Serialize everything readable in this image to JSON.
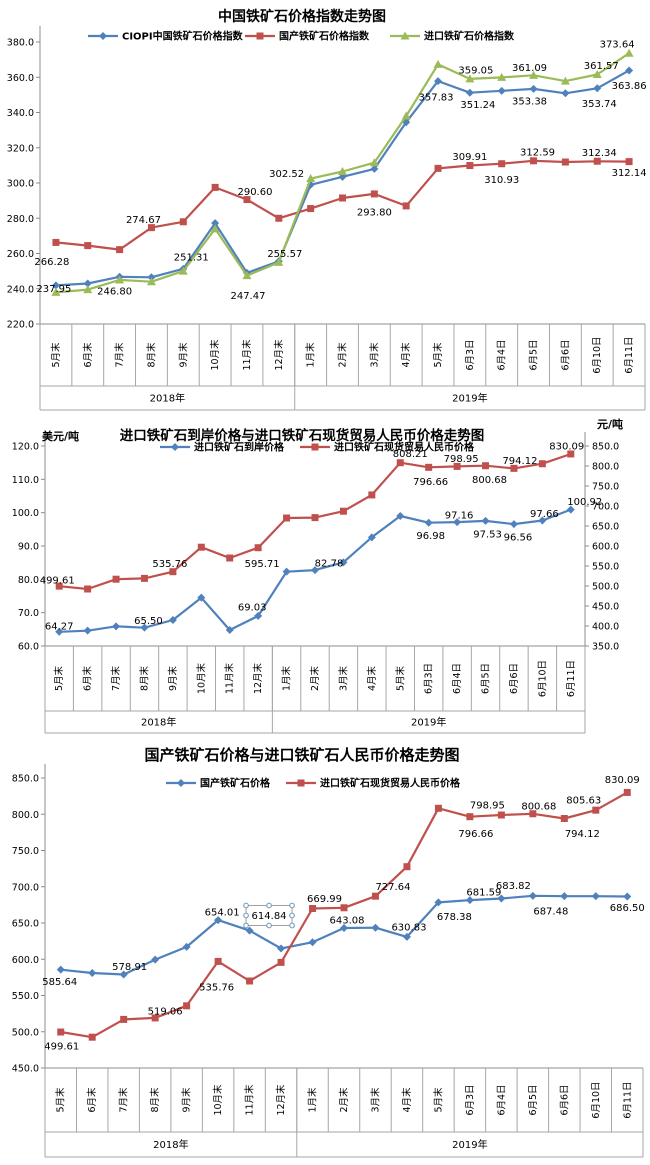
{
  "page": {
    "background": "#ffffff"
  },
  "chart_data": [
    {
      "type": "line",
      "title": "中国铁矿石价格指数走势图",
      "legend_position": "top",
      "grid": false,
      "categories": [
        "5月末",
        "6月末",
        "7月末",
        "8月末",
        "9月末",
        "10月末",
        "11月末",
        "12月末",
        "1月末",
        "2月末",
        "3月末",
        "4月末",
        "5月末",
        "6月3日",
        "6月4日",
        "6月5日",
        "6月6日",
        "6月10日",
        "6月11日"
      ],
      "category_groups": [
        {
          "label": "2018年",
          "span": 8
        },
        {
          "label": "2019年",
          "span": 11
        }
      ],
      "axes": {
        "left": {
          "min": 220,
          "max": 380,
          "step": 20,
          "decimals": 1
        }
      },
      "series": [
        {
          "name": "CIOPI中国铁矿石价格指数",
          "color": "#4f81bd",
          "marker": "diamond",
          "axis": "left",
          "values": [
            241.95,
            243.0,
            246.8,
            246.5,
            251.31,
            277.2,
            249.0,
            255.57,
            299.0,
            303.5,
            308.0,
            334.5,
            357.83,
            351.24,
            352.3,
            353.38,
            350.9,
            353.74,
            363.86
          ],
          "point_labels": [
            {
              "i": 2,
              "t": "246.80",
              "dx": -5,
              "dy": 14
            },
            {
              "i": 4,
              "t": "251.31",
              "dx": 8,
              "dy": -12
            },
            {
              "i": 7,
              "t": "255.57",
              "dx": 6,
              "dy": -8
            },
            {
              "i": 12,
              "t": "357.83",
              "dx": -2,
              "dy": 16
            },
            {
              "i": 13,
              "t": "351.24",
              "dx": 8,
              "dy": 12
            },
            {
              "i": 15,
              "t": "353.38",
              "dx": -4,
              "dy": 12
            },
            {
              "i": 17,
              "t": "353.74",
              "dx": 2,
              "dy": 15
            },
            {
              "i": 18,
              "t": "363.86",
              "dx": 0,
              "dy": 15
            }
          ]
        },
        {
          "name": "国产铁矿石价格指数",
          "color": "#c0504d",
          "marker": "square",
          "axis": "left",
          "values": [
            266.28,
            264.5,
            262.2,
            274.67,
            278.0,
            297.5,
            290.6,
            280.0,
            285.5,
            291.5,
            293.8,
            287.0,
            308.3,
            309.91,
            310.93,
            312.59,
            311.9,
            312.34,
            312.14
          ],
          "point_labels": [
            {
              "i": 0,
              "t": "266.28",
              "dx": -4,
              "dy": 19
            },
            {
              "i": 3,
              "t": "274.67",
              "dx": -8,
              "dy": -8
            },
            {
              "i": 6,
              "t": "290.60",
              "dx": 8,
              "dy": -8
            },
            {
              "i": 10,
              "t": "293.80",
              "dx": 0,
              "dy": 18
            },
            {
              "i": 13,
              "t": "309.91",
              "dx": 0,
              "dy": -9
            },
            {
              "i": 14,
              "t": "310.93",
              "dx": 0,
              "dy": 16
            },
            {
              "i": 15,
              "t": "312.59",
              "dx": 4,
              "dy": -9
            },
            {
              "i": 17,
              "t": "312.34",
              "dx": 2,
              "dy": -9
            },
            {
              "i": 18,
              "t": "312.14",
              "dx": 0,
              "dy": 11
            }
          ]
        },
        {
          "name": "进口铁矿石价格指数",
          "color": "#9bbb59",
          "marker": "triangle",
          "axis": "left",
          "values": [
            237.95,
            239.5,
            245.0,
            244.0,
            250.0,
            274.0,
            247.47,
            255.0,
            302.52,
            306.5,
            311.5,
            338.0,
            367.3,
            359.05,
            359.9,
            361.09,
            357.8,
            361.57,
            373.64
          ],
          "point_labels": [
            {
              "i": 0,
              "t": "237.95",
              "dx": -2,
              "dy": -4
            },
            {
              "i": 6,
              "t": "247.47",
              "dx": 1,
              "dy": 20
            },
            {
              "i": 8,
              "t": "302.52",
              "dx": -24,
              "dy": -5
            },
            {
              "i": 13,
              "t": "359.05",
              "dx": 6,
              "dy": -9
            },
            {
              "i": 15,
              "t": "361.09",
              "dx": -4,
              "dy": -8
            },
            {
              "i": 17,
              "t": "361.57",
              "dx": 4,
              "dy": -9
            },
            {
              "i": 18,
              "t": "373.64",
              "dx": -12,
              "dy": -9
            }
          ]
        }
      ]
    },
    {
      "type": "line",
      "title": "进口铁矿石到岸价格与进口铁矿石现货贸易人民币价格走势图",
      "unit_left": "美元/吨",
      "unit_right": "元/吨",
      "legend_position": "top",
      "grid": false,
      "categories": [
        "5月末",
        "6月末",
        "7月末",
        "8月末",
        "9月末",
        "10月末",
        "11月末",
        "12月末",
        "1月末",
        "2月末",
        "3月末",
        "4月末",
        "5月末",
        "6月3日",
        "6月4日",
        "6月5日",
        "6月6日",
        "6月10日",
        "6月11日"
      ],
      "category_groups": [
        {
          "label": "2018年",
          "span": 8
        },
        {
          "label": "2019年",
          "span": 11
        }
      ],
      "axes": {
        "left": {
          "min": 60,
          "max": 120,
          "step": 10,
          "decimals": 1
        },
        "right": {
          "min": 350,
          "max": 850,
          "step": 50,
          "decimals": 1
        }
      },
      "series": [
        {
          "name": "进口铁矿石到岸价格",
          "color": "#4f81bd",
          "marker": "diamond",
          "axis": "left",
          "values": [
            64.27,
            64.6,
            65.9,
            65.5,
            67.8,
            74.5,
            64.8,
            69.03,
            82.3,
            82.78,
            85.1,
            92.6,
            99.0,
            96.98,
            97.16,
            97.53,
            96.56,
            97.66,
            100.92
          ],
          "point_labels": [
            {
              "i": 0,
              "t": "64.27",
              "dx": 0,
              "dy": -6
            },
            {
              "i": 3,
              "t": "65.50",
              "dx": 4,
              "dy": -7
            },
            {
              "i": 7,
              "t": "69.03",
              "dx": -6,
              "dy": -9
            },
            {
              "i": 9,
              "t": "82.78",
              "dx": 14,
              "dy": -7
            },
            {
              "i": 13,
              "t": "96.98",
              "dx": 2,
              "dy": 13
            },
            {
              "i": 14,
              "t": "97.16",
              "dx": 2,
              "dy": -7
            },
            {
              "i": 15,
              "t": "97.53",
              "dx": 2,
              "dy": 13
            },
            {
              "i": 16,
              "t": "96.56",
              "dx": 4,
              "dy": 13
            },
            {
              "i": 17,
              "t": "97.66",
              "dx": 2,
              "dy": -7
            },
            {
              "i": 18,
              "t": "100.92",
              "dx": 14,
              "dy": -8
            }
          ]
        },
        {
          "name": "进口铁矿石现货贸易人民币价格",
          "color": "#c0504d",
          "marker": "square",
          "axis": "right",
          "values": [
            499.61,
            492.5,
            517.0,
            519.06,
            535.76,
            597.0,
            570.0,
            595.71,
            669.99,
            671.0,
            687.0,
            727.64,
            808.21,
            796.66,
            798.95,
            800.68,
            794.12,
            805.63,
            830.09
          ],
          "point_labels": [
            {
              "i": 0,
              "t": "499.61",
              "dx": -2,
              "dy": -6
            },
            {
              "i": 4,
              "t": "535.76",
              "dx": -3,
              "dy": -8
            },
            {
              "i": 7,
              "t": "595.71",
              "dx": 4,
              "dy": 16
            },
            {
              "i": 12,
              "t": "808.21",
              "dx": 10,
              "dy": -9
            },
            {
              "i": 13,
              "t": "796.66",
              "dx": 2,
              "dy": 14
            },
            {
              "i": 14,
              "t": "798.95",
              "dx": 4,
              "dy": -8
            },
            {
              "i": 15,
              "t": "800.68",
              "dx": 4,
              "dy": 14
            },
            {
              "i": 16,
              "t": "794.12",
              "dx": 6,
              "dy": -8
            },
            {
              "i": 18,
              "t": "830.09",
              "dx": -4,
              "dy": -8
            }
          ]
        }
      ]
    },
    {
      "type": "line",
      "title": "国产铁矿石价格与进口铁矿石人民币价格走势图",
      "legend_position": "top",
      "grid": false,
      "categories": [
        "5月末",
        "6月末",
        "7月末",
        "8月末",
        "9月末",
        "10月末",
        "11月末",
        "12月末",
        "1月末",
        "2月末",
        "3月末",
        "4月末",
        "5月末",
        "6月3日",
        "6月4日",
        "6月5日",
        "6月6日",
        "6月10日",
        "6月11日"
      ],
      "category_groups": [
        {
          "label": "2018年",
          "span": 8
        },
        {
          "label": "2019年",
          "span": 11
        }
      ],
      "axes": {
        "left": {
          "min": 450,
          "max": 850,
          "step": 50,
          "decimals": 1
        }
      },
      "series": [
        {
          "name": "国产铁矿石价格",
          "color": "#4f81bd",
          "marker": "diamond",
          "axis": "left",
          "values": [
            585.64,
            581.0,
            578.91,
            599.5,
            617.0,
            654.01,
            639.5,
            614.84,
            623.5,
            643.08,
            643.5,
            630.83,
            678.38,
            681.59,
            683.82,
            687.48,
            687.0,
            687.0,
            686.5
          ],
          "point_labels": [
            {
              "i": 0,
              "t": "585.64",
              "dx": -1,
              "dy": 12
            },
            {
              "i": 2,
              "t": "578.91",
              "dx": 6,
              "dy": -8
            },
            {
              "i": 5,
              "t": "654.01",
              "dx": 4,
              "dy": -8
            },
            {
              "i": 7,
              "t": "614.84",
              "dx": -12,
              "dy": -33,
              "selected": true
            },
            {
              "i": 9,
              "t": "643.08",
              "dx": 3,
              "dy": -8
            },
            {
              "i": 11,
              "t": "630.83",
              "dx": 2,
              "dy": -10
            },
            {
              "i": 12,
              "t": "678.38",
              "dx": 16,
              "dy": 14
            },
            {
              "i": 13,
              "t": "681.59",
              "dx": 14,
              "dy": -8
            },
            {
              "i": 14,
              "t": "683.82",
              "dx": 12,
              "dy": -13
            },
            {
              "i": 15,
              "t": "687.48",
              "dx": 18,
              "dy": 15
            },
            {
              "i": 18,
              "t": "686.50",
              "dx": 0,
              "dy": 11
            }
          ]
        },
        {
          "name": "进口铁矿石现货贸易人民币价格",
          "color": "#c0504d",
          "marker": "square",
          "axis": "left",
          "values": [
            499.61,
            492.5,
            517.0,
            519.06,
            535.76,
            597.0,
            570.0,
            595.71,
            669.99,
            671.0,
            687.0,
            727.64,
            808.21,
            796.66,
            798.95,
            800.68,
            794.12,
            805.63,
            830.09
          ],
          "point_labels": [
            {
              "i": 0,
              "t": "499.61",
              "dx": 1,
              "dy": 14
            },
            {
              "i": 3,
              "t": "519.06",
              "dx": 10,
              "dy": -7
            },
            {
              "i": 4,
              "t": "535.76",
              "dx": 30,
              "dy": -19
            },
            {
              "i": 8,
              "t": "669.99",
              "dx": 12,
              "dy": -10
            },
            {
              "i": 11,
              "t": "727.64",
              "dx": -14,
              "dy": 20
            },
            {
              "i": 13,
              "t": "796.66",
              "dx": 6,
              "dy": 17
            },
            {
              "i": 14,
              "t": "798.95",
              "dx": -14,
              "dy": -10
            },
            {
              "i": 15,
              "t": "800.68",
              "dx": 6,
              "dy": -8
            },
            {
              "i": 16,
              "t": "794.12",
              "dx": 18,
              "dy": 15
            },
            {
              "i": 17,
              "t": "805.63",
              "dx": -12,
              "dy": -10
            },
            {
              "i": 18,
              "t": "830.09",
              "dx": -5,
              "dy": -13
            }
          ]
        }
      ]
    }
  ]
}
